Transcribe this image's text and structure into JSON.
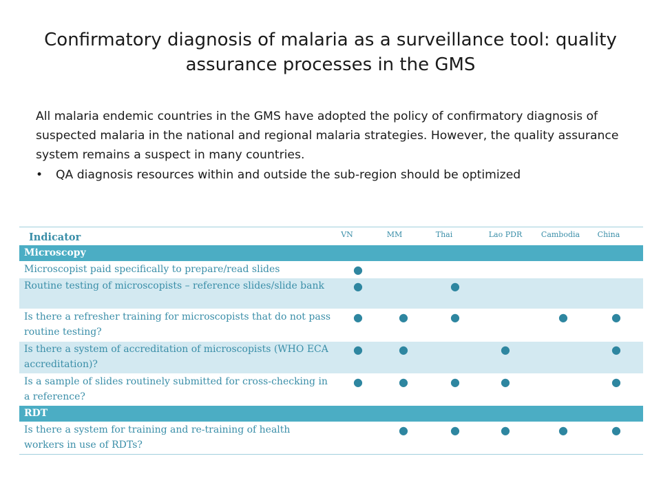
{
  "title": "Confirmatory diagnosis of malaria as a surveillance tool: quality assurance processes in the GMS",
  "intro": "All malaria endemic countries in the GMS have adopted the policy of confirmatory diagnosis of suspected malaria in the national and regional malaria strategies. However, the quality assurance system remains a suspect in many countries.",
  "bullets": [
    "QA diagnosis resources within and outside the sub-region should be optimized"
  ],
  "bullet_symbol": "•",
  "mark_symbol": "●",
  "table": {
    "indicator_header": "Indicator",
    "columns": [
      "VN",
      "MM",
      "Thai",
      "Lao PDR",
      "Cambodia",
      "China"
    ],
    "sections": [
      {
        "name": "Microscopy",
        "rows": [
          {
            "label": "Microscopist paid specifically to prepare/read slides",
            "marks": [
              true,
              false,
              false,
              false,
              false,
              false
            ]
          },
          {
            "label": "Routine testing of microscopists – reference slides/slide bank",
            "marks": [
              true,
              false,
              true,
              false,
              false,
              false
            ]
          },
          {
            "label": "Is there a refresher training for microscopists that do not pass routine testing?",
            "marks": [
              true,
              true,
              true,
              false,
              true,
              true
            ]
          },
          {
            "label": "Is there a system of accreditation of microscopists (WHO ECA accreditation)?",
            "marks": [
              true,
              true,
              false,
              true,
              false,
              true
            ]
          },
          {
            "label": "Is a sample of slides routinely submitted for cross-checking in a reference?",
            "marks": [
              true,
              true,
              true,
              true,
              false,
              true
            ]
          }
        ]
      },
      {
        "name": "RDT",
        "rows": [
          {
            "label": "Is there a system for training and re-training of health workers in use of RDTs?",
            "marks": [
              false,
              true,
              true,
              true,
              true,
              true
            ]
          }
        ]
      }
    ]
  },
  "colors": {
    "section_bar": "#4badc4",
    "row_shade": "#d3e9f1",
    "table_text": "#3a8ea8",
    "mark": "#2e86a0"
  }
}
